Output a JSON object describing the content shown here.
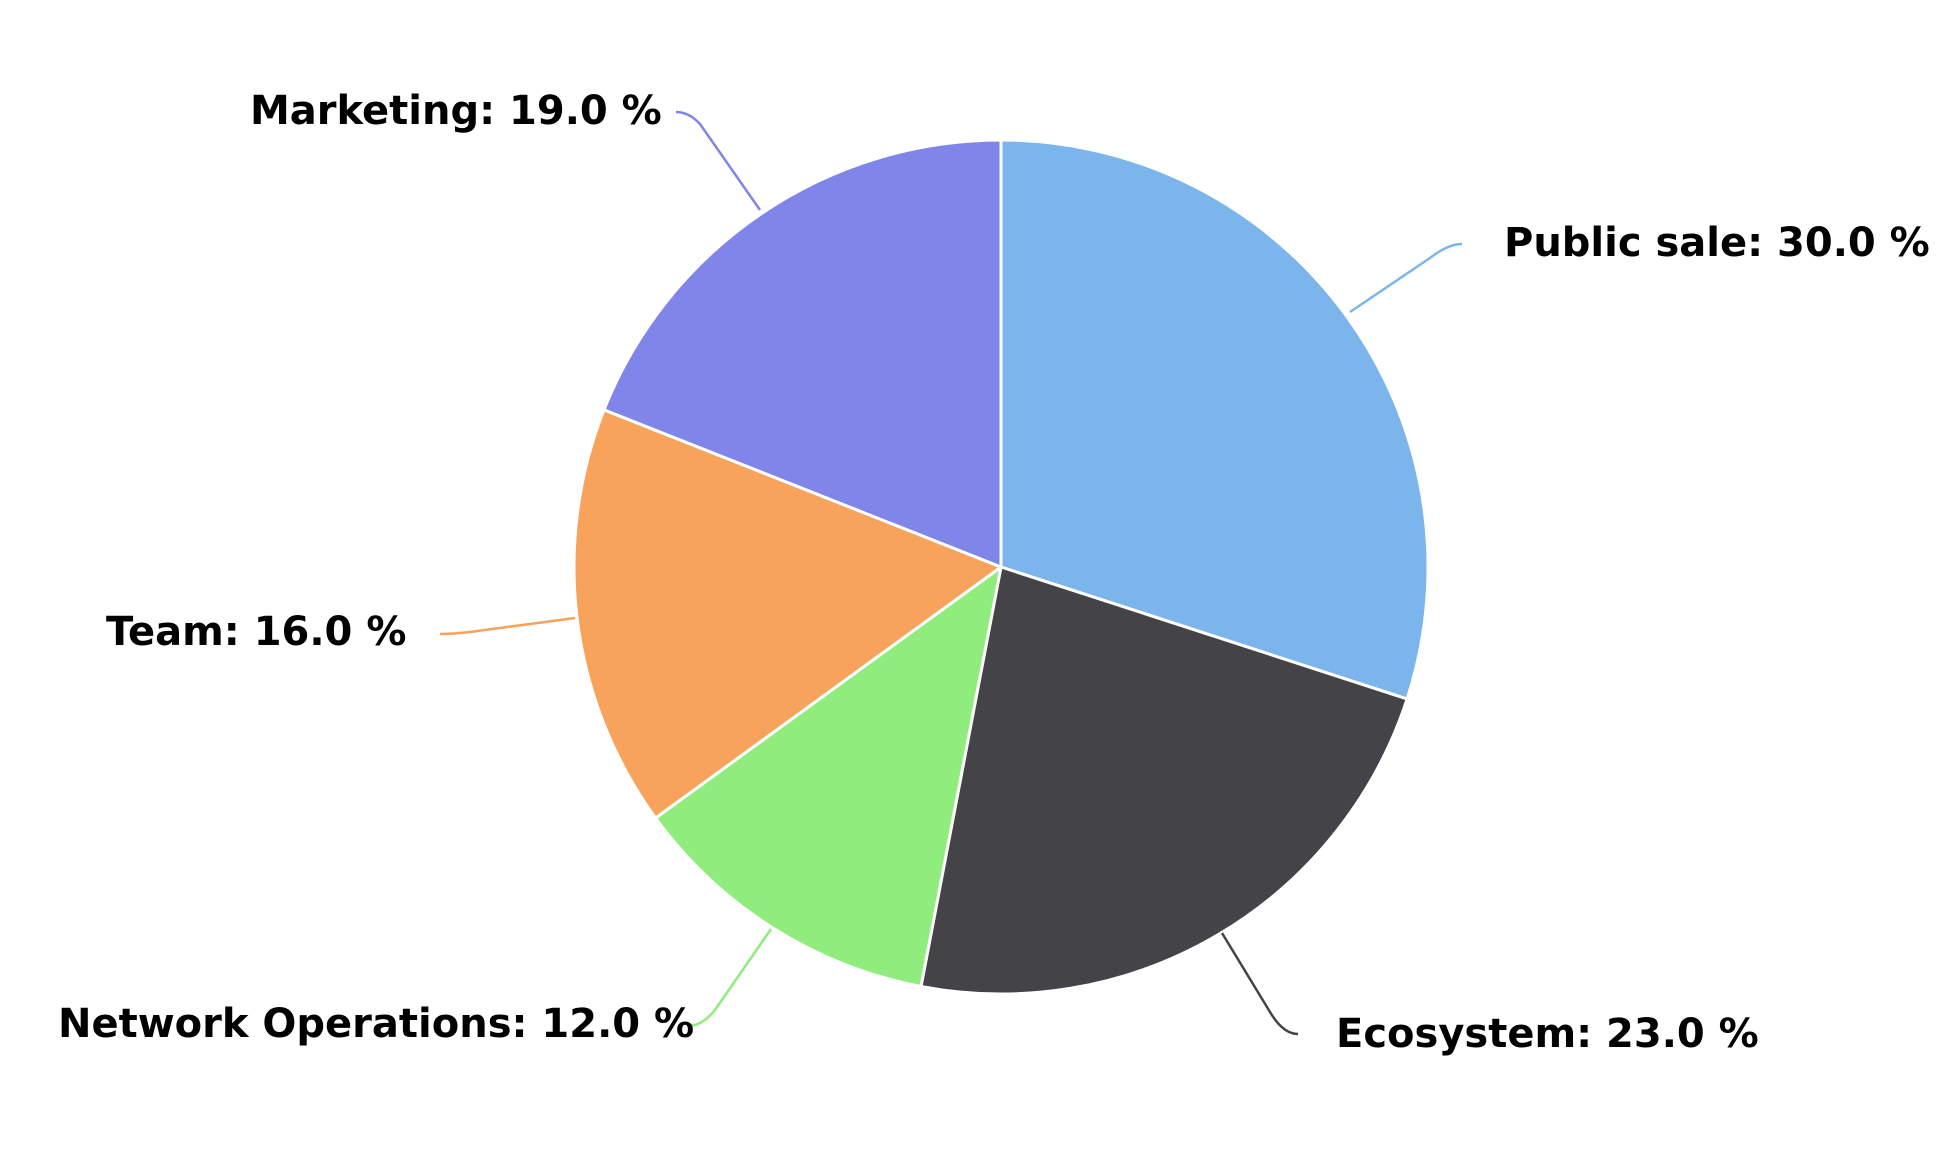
{
  "chart_data": {
    "type": "pie",
    "title": "",
    "start_angle_deg": 0,
    "direction": "clockwise",
    "slices": [
      {
        "name": "Public sale",
        "value": 30.0,
        "label": "Public sale: 30.0 %",
        "color": "#7cb5ec",
        "key": "public-sale"
      },
      {
        "name": "Ecosystem",
        "value": 23.0,
        "label": "Ecosystem: 23.0 %",
        "color": "#434348",
        "key": "ecosystem"
      },
      {
        "name": "Network Operations",
        "value": 12.0,
        "label": "Network Operations: 12.0 %",
        "color": "#90ed7d",
        "key": "network-operations"
      },
      {
        "name": "Team",
        "value": 16.0,
        "label": "Team: 16.0 %",
        "color": "#f7a35c",
        "key": "team"
      },
      {
        "name": "Marketing",
        "value": 19.0,
        "label": "Marketing: 19.0 %",
        "color": "#8085e9",
        "key": "marketing"
      }
    ]
  }
}
